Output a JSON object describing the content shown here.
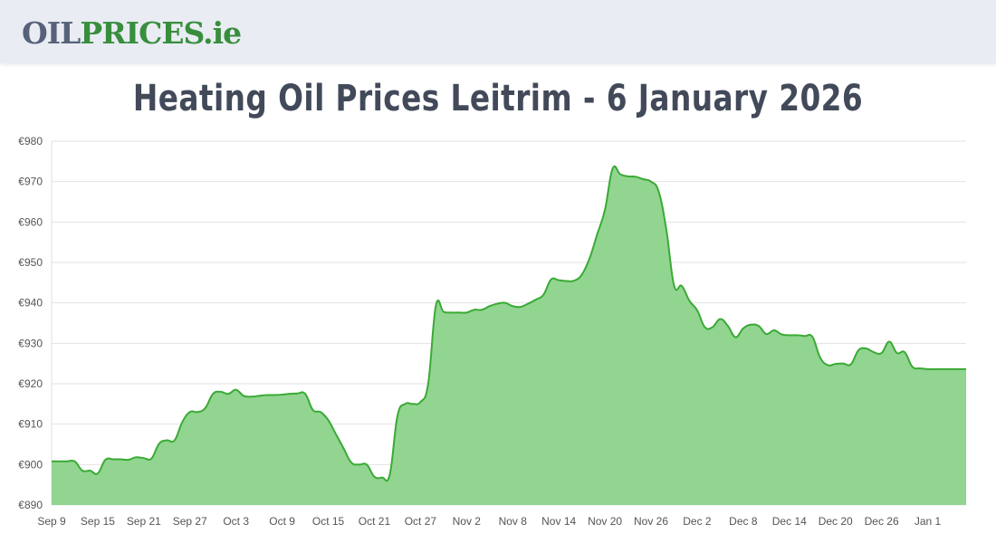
{
  "header": {
    "logo_part1": "OIL",
    "logo_part2": "PRICES.ie"
  },
  "title": "Heating Oil Prices Leitrim - 6 January 2026",
  "chart_data": {
    "type": "area",
    "title": "Heating Oil Prices Leitrim - 6 January 2026",
    "xlabel": "",
    "ylabel": "",
    "ylim": [
      890,
      980
    ],
    "y_ticks": [
      "€890",
      "€900",
      "€910",
      "€920",
      "€930",
      "€940",
      "€950",
      "€960",
      "€970",
      "€980"
    ],
    "x_ticks": [
      "Sep 9",
      "Sep 15",
      "Sep 21",
      "Sep 27",
      "Oct 3",
      "Oct 9",
      "Oct 15",
      "Oct 21",
      "Oct 27",
      "Nov 2",
      "Nov 8",
      "Nov 14",
      "Nov 20",
      "Nov 26",
      "Dec 2",
      "Dec 8",
      "Dec 14",
      "Dec 20",
      "Dec 26",
      "Jan 1"
    ],
    "grid": true,
    "colors": {
      "line": "#3aaa35",
      "fill": "#8fd48f"
    },
    "x": [
      "Sep 9",
      "Sep 10",
      "Sep 11",
      "Sep 12",
      "Sep 13",
      "Sep 14",
      "Sep 15",
      "Sep 16",
      "Sep 17",
      "Sep 18",
      "Sep 19",
      "Sep 20",
      "Sep 21",
      "Sep 22",
      "Sep 23",
      "Sep 24",
      "Sep 25",
      "Sep 26",
      "Sep 27",
      "Sep 28",
      "Sep 29",
      "Sep 30",
      "Oct 1",
      "Oct 2",
      "Oct 3",
      "Oct 4",
      "Oct 5",
      "Oct 6",
      "Oct 7",
      "Oct 8",
      "Oct 9",
      "Oct 10",
      "Oct 11",
      "Oct 12",
      "Oct 13",
      "Oct 14",
      "Oct 15",
      "Oct 16",
      "Oct 17",
      "Oct 18",
      "Oct 19",
      "Oct 20",
      "Oct 21",
      "Oct 22",
      "Oct 23",
      "Oct 24",
      "Oct 25",
      "Oct 26",
      "Oct 27",
      "Oct 28",
      "Oct 29",
      "Oct 30",
      "Oct 31",
      "Nov 1",
      "Nov 2",
      "Nov 3",
      "Nov 4",
      "Nov 5",
      "Nov 6",
      "Nov 7",
      "Nov 8",
      "Nov 9",
      "Nov 10",
      "Nov 11",
      "Nov 12",
      "Nov 13",
      "Nov 14",
      "Nov 15",
      "Nov 16",
      "Nov 17",
      "Nov 18",
      "Nov 19",
      "Nov 20",
      "Nov 21",
      "Nov 22",
      "Nov 23",
      "Nov 24",
      "Nov 25",
      "Nov 26",
      "Nov 27",
      "Nov 28",
      "Nov 29",
      "Nov 30",
      "Dec 1",
      "Dec 2",
      "Dec 3",
      "Dec 4",
      "Dec 5",
      "Dec 6",
      "Dec 7",
      "Dec 8",
      "Dec 9",
      "Dec 10",
      "Dec 11",
      "Dec 12",
      "Dec 13",
      "Dec 14",
      "Dec 15",
      "Dec 16",
      "Dec 17",
      "Dec 18",
      "Dec 19",
      "Dec 20",
      "Dec 21",
      "Dec 22",
      "Dec 23",
      "Dec 24",
      "Dec 25",
      "Dec 26",
      "Dec 27",
      "Dec 28",
      "Dec 29",
      "Dec 30",
      "Dec 31",
      "Jan 1",
      "Jan 2",
      "Jan 3",
      "Jan 4",
      "Jan 5",
      "Jan 6"
    ],
    "values": [
      900.8,
      900.8,
      900.8,
      900.8,
      898.5,
      898.5,
      897.8,
      901.2,
      901.3,
      901.3,
      901.2,
      901.8,
      901.6,
      901.5,
      905.2,
      906,
      906,
      910.5,
      913,
      913,
      914,
      917.5,
      918,
      917.5,
      918.5,
      917,
      916.8,
      917,
      917.2,
      917.2,
      917.3,
      917.5,
      917.6,
      917.5,
      913.5,
      913,
      911,
      907.5,
      904,
      900.5,
      900,
      900,
      897,
      896.8,
      897.5,
      912,
      915,
      915,
      915.5,
      920,
      939.3,
      937.8,
      937.6,
      937.6,
      937.6,
      938.3,
      938.3,
      939.2,
      939.8,
      940,
      939.2,
      939,
      939.8,
      940.8,
      942,
      945.8,
      945.6,
      945.4,
      945.5,
      947,
      951,
      957,
      963,
      973.2,
      971.8,
      971.3,
      971.2,
      970.6,
      970,
      967.5,
      958,
      944.3,
      944.2,
      940.5,
      938.2,
      934,
      934,
      936,
      934.3,
      931.5,
      933.7,
      934.6,
      934.3,
      932.3,
      933.2,
      932.2,
      932,
      932,
      931.8,
      931.6,
      926.5,
      924.6,
      924.9,
      925,
      924.8,
      928.3,
      928.7,
      927.8,
      927.6,
      930.4,
      927.6,
      927.8,
      924.2,
      923.8,
      923.6,
      923.6,
      923.6,
      923.6,
      923.6,
      923.6
    ]
  }
}
